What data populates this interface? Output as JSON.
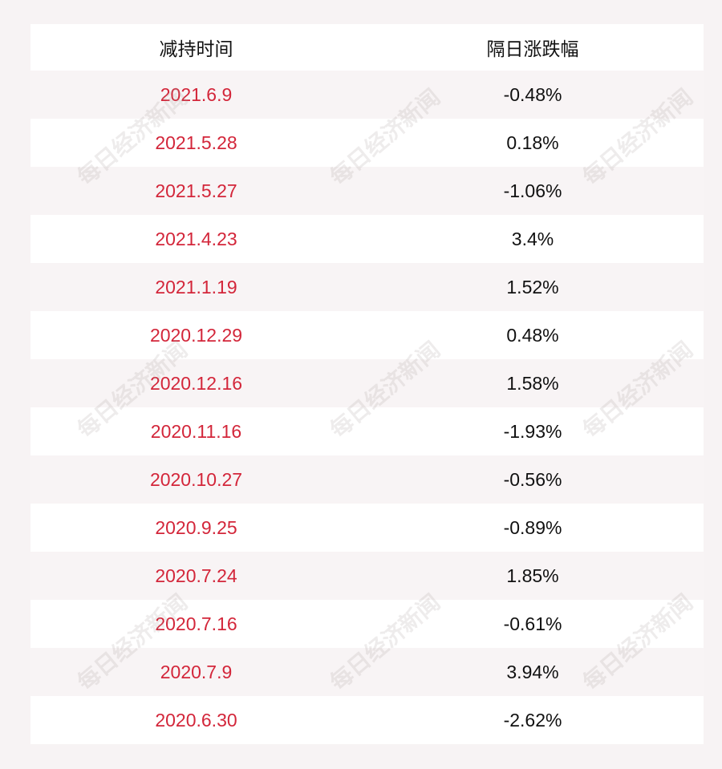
{
  "table": {
    "header": [
      "减持时间",
      "隔日涨跌幅"
    ],
    "rows": [
      [
        "2021.6.9",
        "-0.48%"
      ],
      [
        "2021.5.28",
        "0.18%"
      ],
      [
        "2021.5.27",
        "-1.06%"
      ],
      [
        "2021.4.23",
        "3.4%"
      ],
      [
        "2021.1.19",
        "1.52%"
      ],
      [
        "2020.12.29",
        "0.48%"
      ],
      [
        "2020.12.16",
        "1.58%"
      ],
      [
        "2020.11.16",
        "-1.93%"
      ],
      [
        "2020.10.27",
        "-0.56%"
      ],
      [
        "2020.9.25",
        "-0.89%"
      ],
      [
        "2020.7.24",
        "1.85%"
      ],
      [
        "2020.7.16",
        "-0.61%"
      ],
      [
        "2020.7.9",
        "3.94%"
      ],
      [
        "2020.6.30",
        "-2.62%"
      ]
    ]
  },
  "watermark": "每日经济新闻"
}
